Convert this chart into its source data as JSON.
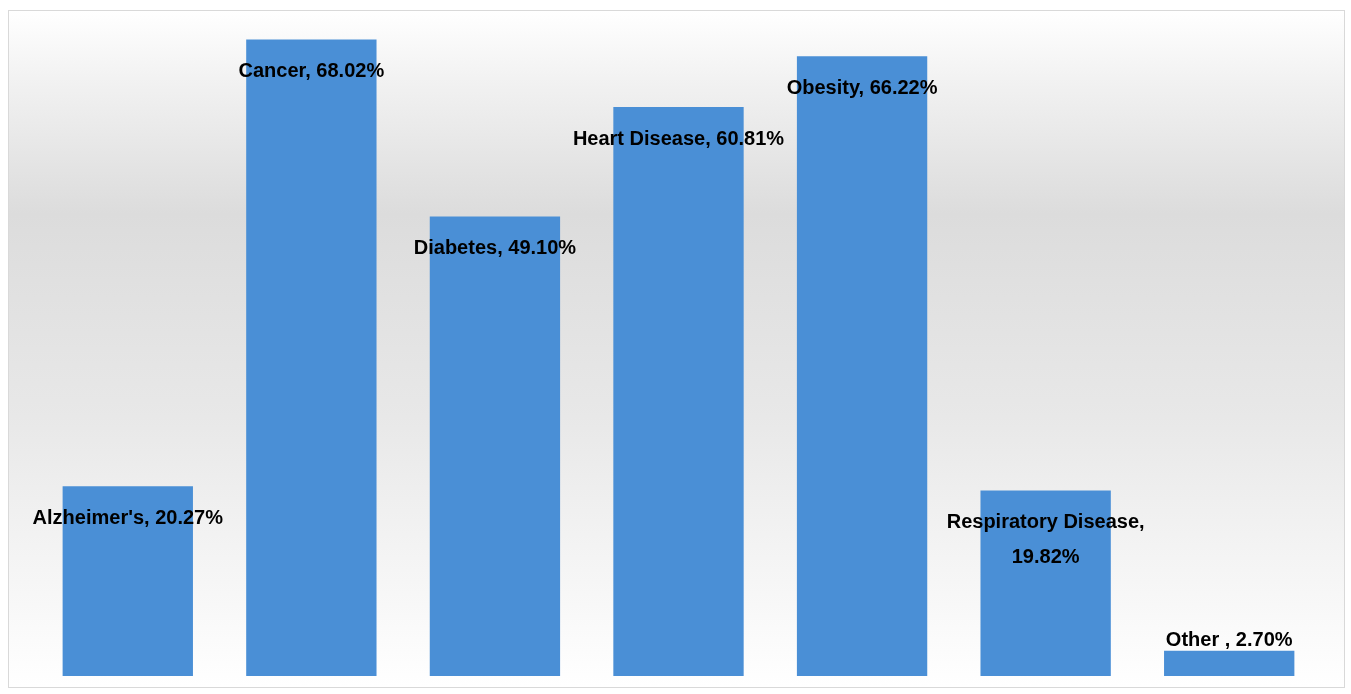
{
  "chart_data": {
    "type": "bar",
    "categories": [
      null,
      null,
      null,
      null,
      null,
      null,
      null
    ],
    "values": [
      20.27,
      68.02,
      49.1,
      60.81,
      66.22,
      19.82,
      2.7
    ],
    "color": "#4a8fd6",
    "value_labels": [
      "Alzheimer's, 20.27%",
      "Cancer, 68.02%",
      "Diabetes, 49.10%",
      "Heart Disease, 60.81%",
      "Obesity, 66.22%",
      "Respiratory Disease, 19.82%",
      "Other , 2.70%"
    ],
    "grid": false,
    "legend": false
  }
}
